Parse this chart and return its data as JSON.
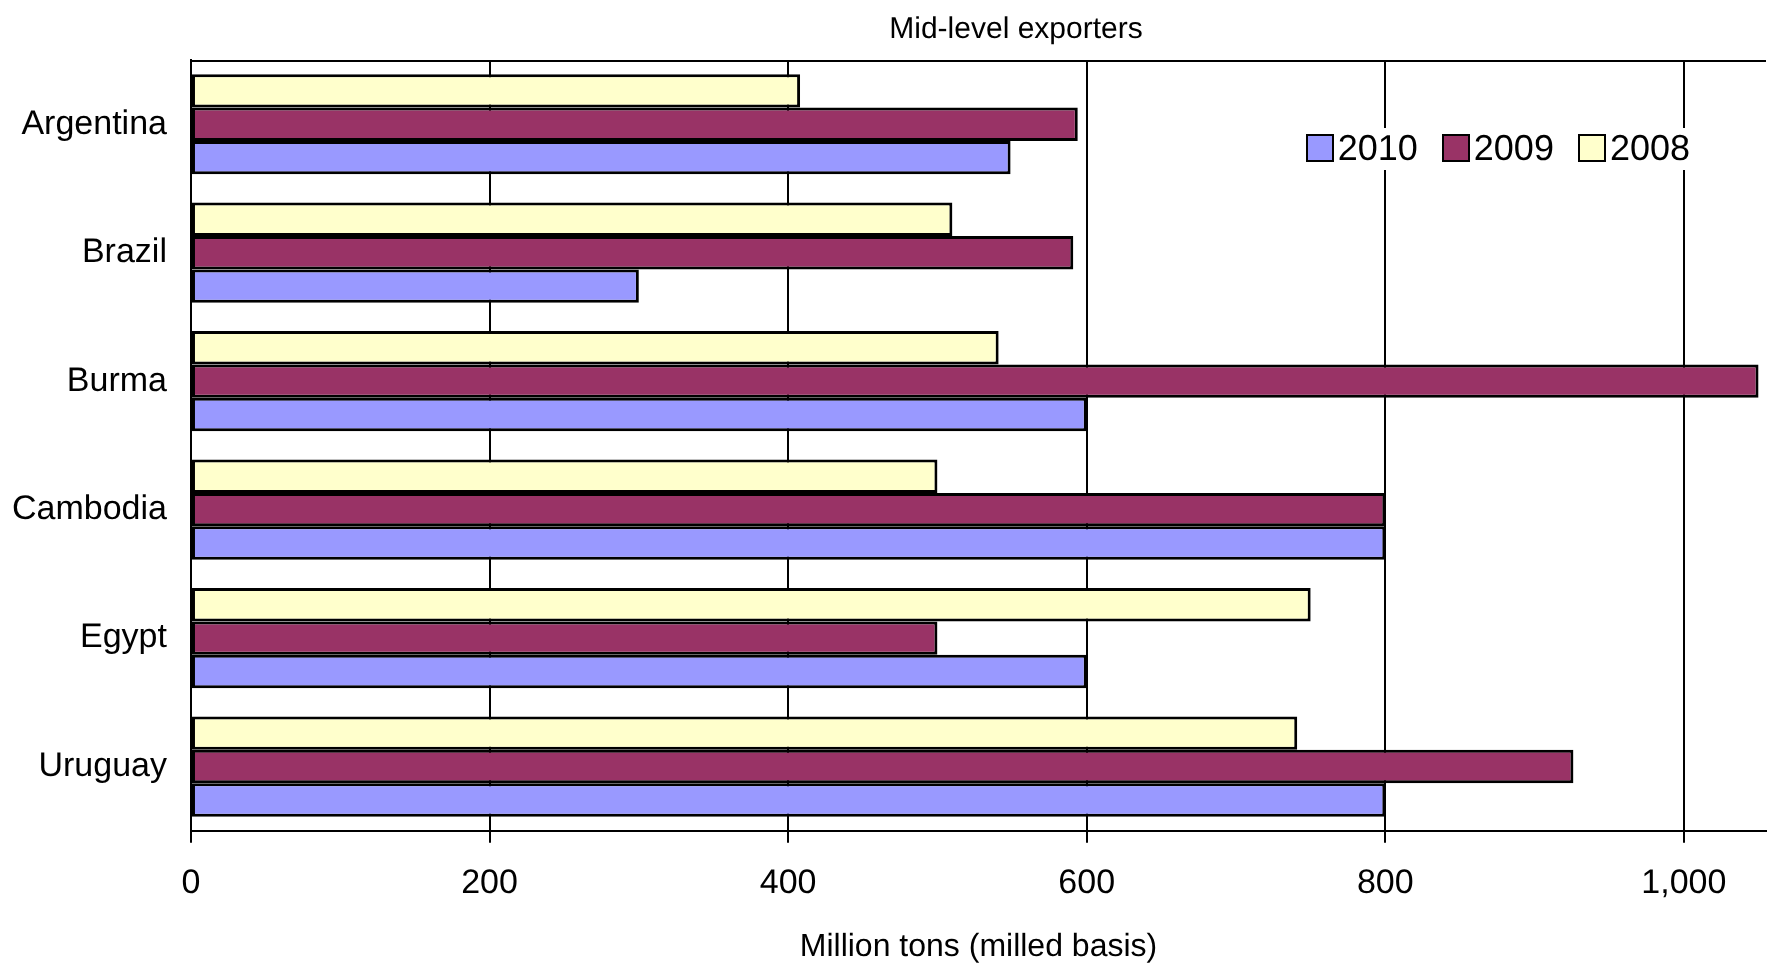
{
  "chart_data": {
    "type": "bar",
    "orientation": "horizontal",
    "title": "Mid-level exporters",
    "xlabel": "Million tons (milled basis)",
    "categories": [
      "Argentina",
      "Brazil",
      "Burma",
      "Cambodia",
      "Egypt",
      "Uruguay"
    ],
    "series": [
      {
        "name": "2010",
        "color": "#9999ff",
        "values": [
          549,
          300,
          600,
          800,
          600,
          800
        ]
      },
      {
        "name": "2009",
        "color": "#993366",
        "values": [
          594,
          591,
          1050,
          800,
          500,
          926
        ]
      },
      {
        "name": "2008",
        "color": "#ffffcc",
        "values": [
          408,
          510,
          541,
          500,
          750,
          741
        ]
      }
    ],
    "xlim": [
      0,
      1055
    ],
    "xticks": [
      0,
      200,
      400,
      600,
      800,
      {
        "value": 1000,
        "label": "1,000"
      }
    ],
    "grid": "x",
    "legend": "top right"
  }
}
